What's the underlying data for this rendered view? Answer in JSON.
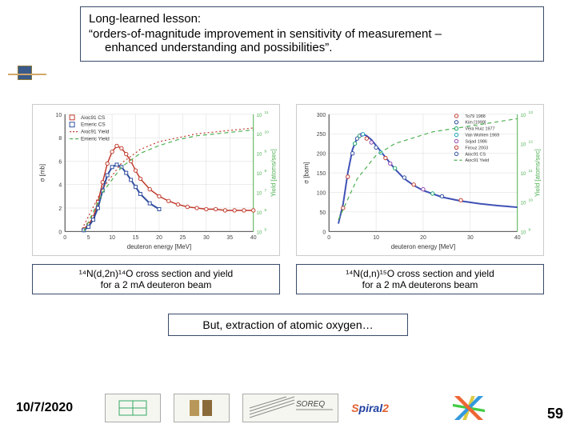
{
  "lesson": {
    "title": "Long-learned lesson:",
    "line1": "“orders-of-magnitude improvement in sensitivity of measurement –",
    "line2": "enhanced understanding and possibilities”."
  },
  "chart_left": {
    "type": "line+scatter dual-axis",
    "xlabel": "deuteron energy [MeV]",
    "ylabel_left": "σ [mb]",
    "ylabel_right": "Yield [atoms/sec]",
    "xlim": [
      0,
      40
    ],
    "xtick_step": 5,
    "ylim_left": [
      0,
      10
    ],
    "ylim_right_log": [
      100000.0,
      100000000000.0
    ],
    "grid_color": "#d9d9d9",
    "background_color": "#ffffff",
    "axis_right_color": "#4caf50",
    "legend": [
      {
        "label": "Aioc91 CS",
        "marker": "square",
        "color": "#c0392b"
      },
      {
        "label": "Emeric CS",
        "marker": "square",
        "color": "#2e4d9e"
      },
      {
        "label": "Aioc91 Yield",
        "style": "dotted",
        "color": "#c0392b"
      },
      {
        "label": "Emeric Yield",
        "style": "dashed",
        "color": "#4caf50"
      }
    ],
    "series": {
      "aioc_cs": {
        "color": "#c0392b",
        "marker": "circle",
        "line_width": 1.5,
        "x": [
          4,
          5,
          6,
          7,
          8,
          9,
          10,
          11,
          12,
          13,
          14,
          15,
          16,
          18,
          20,
          22,
          24,
          26,
          28,
          30,
          32,
          34,
          36,
          38,
          40
        ],
        "y": [
          0.2,
          0.6,
          1.2,
          2.5,
          4.2,
          5.8,
          6.8,
          7.3,
          7.1,
          6.6,
          6.0,
          5.2,
          4.5,
          3.6,
          3.0,
          2.6,
          2.3,
          2.1,
          2.0,
          1.9,
          1.9,
          1.8,
          1.8,
          1.8,
          1.8
        ]
      },
      "emeric_cs": {
        "color": "#2e4d9e",
        "marker": "square",
        "line_width": 2,
        "x": [
          4,
          5,
          6,
          7,
          8,
          9,
          10,
          11,
          12,
          13,
          14,
          15,
          16,
          18,
          20
        ],
        "y": [
          0.1,
          0.4,
          1.0,
          2.0,
          3.5,
          4.8,
          5.5,
          5.7,
          5.5,
          5.0,
          4.4,
          3.8,
          3.2,
          2.4,
          1.9
        ]
      },
      "aioc_yield": {
        "color": "#c0392b",
        "style": "dotted",
        "line_width": 1.2,
        "x": [
          4,
          8,
          12,
          16,
          20,
          24,
          28,
          32,
          36,
          40
        ],
        "y_log": [
          5.3,
          7.2,
          8.5,
          9.2,
          9.6,
          9.8,
          10.0,
          10.1,
          10.2,
          10.3
        ]
      },
      "emeric_yield": {
        "color": "#4caf50",
        "style": "dashed",
        "line_width": 1.2,
        "x": [
          4,
          8,
          12,
          16,
          20,
          24,
          28,
          32,
          36,
          40
        ],
        "y_log": [
          5.0,
          7.0,
          8.3,
          9.0,
          9.4,
          9.7,
          9.9,
          10.0,
          10.1,
          10.2
        ]
      }
    },
    "fontsize": {
      "axis": 8,
      "legend": 7
    }
  },
  "chart_right": {
    "type": "line+scatter dual-axis",
    "xlabel": "deuteron energy [MeV]",
    "ylabel_left": "σ [barn]",
    "ylabel_right": "Yield [atoms/sec]",
    "xlim": [
      0,
      40
    ],
    "xtick_step": 10,
    "ylim_left": [
      0,
      300
    ],
    "ytick_step_left": 50,
    "ylim_right_log": [
      1000000000.0,
      10000000000000.0
    ],
    "grid_color": "#d9d9d9",
    "background_color": "#ffffff",
    "axis_right_color": "#4caf50",
    "legend": [
      {
        "label": "To79 1988",
        "marker": "diamond",
        "color": "#c0392b"
      },
      {
        "label": "Kim [1999]",
        "marker": "triangle",
        "color": "#2e4d9e"
      },
      {
        "label": "Vera Ruiz 1977",
        "marker": "triangle-down",
        "color": "#1aa36a"
      },
      {
        "label": "Van Wohlen 1969",
        "marker": "diamond",
        "color": "#17a2b8"
      },
      {
        "label": "Sojad 1986",
        "marker": "circle",
        "color": "#8e44ad"
      },
      {
        "label": "Firouz 2003",
        "marker": "square-open",
        "color": "#c0392b"
      },
      {
        "label": "Aioc91 CS",
        "marker": "square-open",
        "color": "#2e4d9e"
      },
      {
        "label": "Aioc91 Yield",
        "style": "dashed",
        "color": "#4caf50"
      }
    ],
    "series": {
      "main_curve": {
        "color": "#3f51b5",
        "line_width": 2,
        "x": [
          2,
          3,
          4,
          5,
          6,
          7,
          8,
          9,
          10,
          11,
          12,
          14,
          16,
          18,
          20,
          24,
          28,
          32,
          36,
          40
        ],
        "y": [
          20,
          70,
          150,
          210,
          240,
          250,
          245,
          235,
          220,
          205,
          190,
          160,
          135,
          118,
          105,
          88,
          78,
          71,
          66,
          62
        ]
      },
      "scatter_points": {
        "x": [
          3,
          4,
          5,
          5.5,
          6,
          6.5,
          7,
          7.2,
          8,
          9,
          10,
          11,
          12,
          13,
          14,
          16,
          18,
          20,
          22,
          24,
          28
        ],
        "y": [
          60,
          140,
          200,
          225,
          238,
          245,
          248,
          249,
          238,
          228,
          215,
          202,
          188,
          174,
          162,
          138,
          120,
          108,
          97,
          90,
          80
        ],
        "colors": [
          "#c0392b",
          "#c0392b",
          "#2e4d9e",
          "#1aa36a",
          "#2e4d9e",
          "#1aa36a",
          "#8e44ad",
          "#17a2b8",
          "#c0392b",
          "#8e44ad",
          "#2e4d9e",
          "#17a2b8",
          "#c0392b",
          "#8e44ad",
          "#1aa36a",
          "#2e4d9e",
          "#c0392b",
          "#8e44ad",
          "#1aa36a",
          "#2e4d9e",
          "#c0392b"
        ]
      },
      "yield": {
        "color": "#4caf50",
        "style": "dashed",
        "line_width": 1.2,
        "x": [
          2,
          6,
          10,
          14,
          18,
          22,
          26,
          30,
          34,
          38,
          40
        ],
        "y_log": [
          9.4,
          10.8,
          11.6,
          12.0,
          12.2,
          12.4,
          12.5,
          12.6,
          12.7,
          12.8,
          12.85
        ]
      }
    },
    "fontsize": {
      "axis": 8,
      "legend": 6
    }
  },
  "captions": {
    "left_html": "¹⁴N(d,2n)¹⁴O cross section and yield<br>for a 2 mA deuteron beam",
    "right_html": "¹⁴N(d,n)¹⁵O cross section and yield<br>for a 2 mA deuterons beam"
  },
  "but_line": "But, extraction of atomic oxygen…",
  "footer": {
    "date": "10/7/2020",
    "page": "59",
    "logos": [
      "inst-1",
      "inst-2",
      "SOREQ",
      "Spiral2"
    ]
  },
  "colors": {
    "box_border": "#3a4a6a",
    "green_axis": "#4caf50",
    "red": "#c0392b",
    "blue": "#2e4d9e"
  }
}
